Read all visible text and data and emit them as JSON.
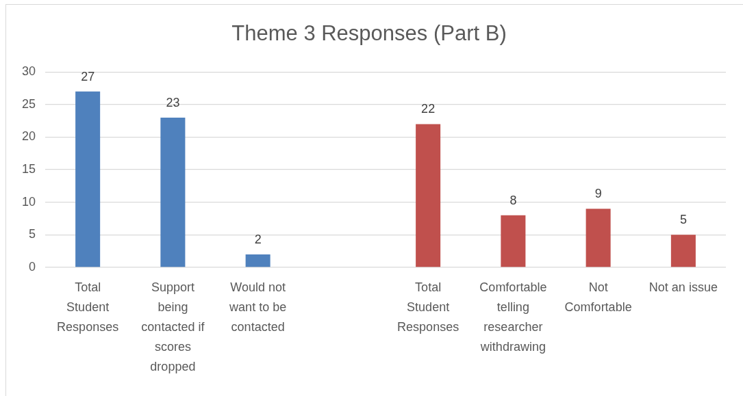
{
  "chart_data": {
    "type": "bar",
    "title": "Theme 3 Responses (Part B)",
    "categories": [
      "Total Student Responses",
      "Support being contacted if scores dropped",
      "Would not want to be contacted",
      null,
      "Total Student Responses",
      "Comfortable telling researcher withdrawing",
      "Not Comfortable",
      "Not an issue"
    ],
    "values": [
      27,
      23,
      2,
      null,
      22,
      8,
      9,
      5
    ],
    "colors": [
      "#4f81bd",
      "#4f81bd",
      "#4f81bd",
      null,
      "#c0504d",
      "#c0504d",
      "#c0504d",
      "#c0504d"
    ],
    "ylim": [
      0,
      30
    ],
    "yticks": [
      0,
      5,
      10,
      15,
      20,
      25,
      30
    ],
    "grid": "y",
    "data_labels": true
  }
}
